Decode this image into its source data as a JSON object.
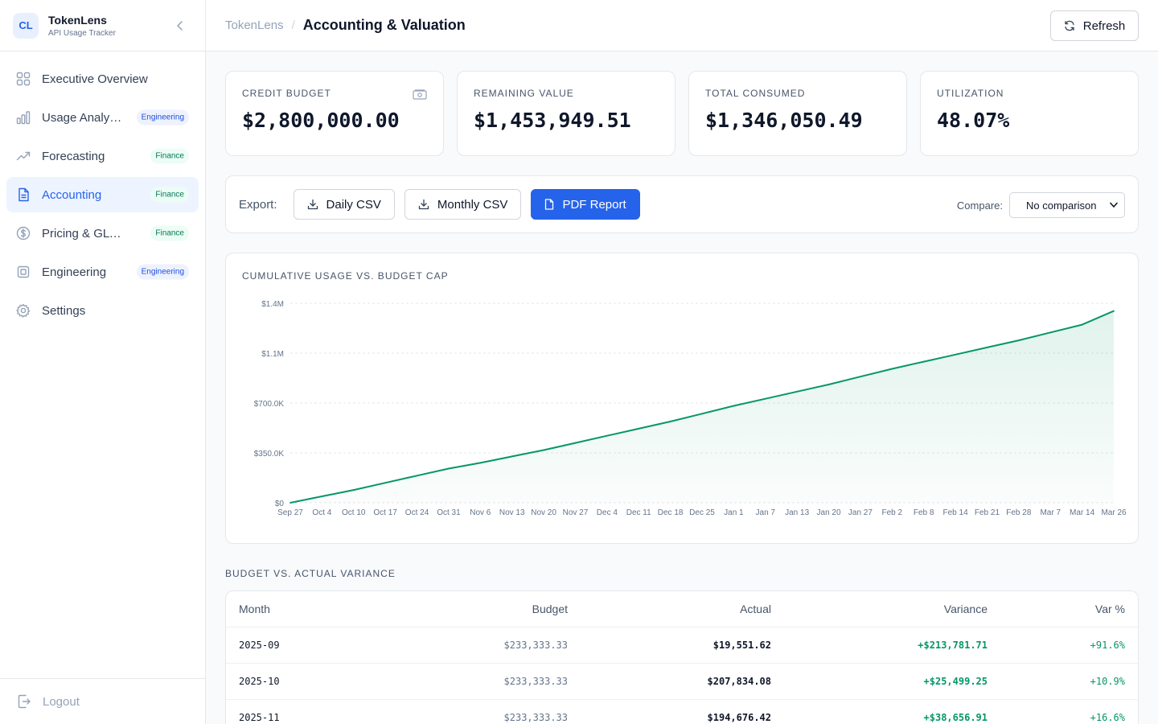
{
  "brand": {
    "logo": "CL",
    "name": "TokenLens",
    "subtitle": "API Usage Tracker"
  },
  "nav": [
    {
      "label": "Executive Overview",
      "icon": "grid-icon",
      "badge": ""
    },
    {
      "label": "Usage Analytics",
      "icon": "bar-chart-icon",
      "badge": "Engineering"
    },
    {
      "label": "Forecasting",
      "icon": "trending-up-icon",
      "badge": "Finance"
    },
    {
      "label": "Accounting",
      "icon": "document-icon",
      "badge": "Finance",
      "active": true
    },
    {
      "label": "Pricing & GL Tools",
      "icon": "dollar-circle-icon",
      "badge": "Finance"
    },
    {
      "label": "Engineering",
      "icon": "cpu-icon",
      "badge": "Engineering"
    },
    {
      "label": "Settings",
      "icon": "gear-icon",
      "badge": ""
    }
  ],
  "logout": "Logout",
  "header": {
    "root": "TokenLens",
    "separator": "/",
    "title": "Accounting & Valuation",
    "refresh": "Refresh"
  },
  "cards": [
    {
      "label": "Credit Budget",
      "value": "$2,800,000.00"
    },
    {
      "label": "Remaining Value",
      "value": "$1,453,949.51"
    },
    {
      "label": "Total Consumed",
      "value": "$1,346,050.49"
    },
    {
      "label": "Utilization",
      "value": "48.07%"
    }
  ],
  "toolbar": {
    "export_label": "Export:",
    "daily_csv": "Daily CSV",
    "monthly_csv": "Monthly CSV",
    "pdf_report": "PDF Report",
    "compare_label": "Compare:",
    "compare_value": "No comparison"
  },
  "chart_data": {
    "type": "area",
    "title": "Cumulative Usage vs. Budget Cap",
    "yticks": [
      "$0",
      "$350.0K",
      "$700.0K",
      "$1.1M",
      "$1.4M"
    ],
    "ylim": [
      0,
      1400000
    ],
    "xticks": [
      "Sep 27",
      "Oct 4",
      "Oct 10",
      "Oct 17",
      "Oct 24",
      "Oct 31",
      "Nov 6",
      "Nov 13",
      "Nov 20",
      "Nov 27",
      "Dec 4",
      "Dec 11",
      "Dec 18",
      "Dec 25",
      "Jan 1",
      "Jan 7",
      "Jan 13",
      "Jan 20",
      "Jan 27",
      "Feb 2",
      "Feb 8",
      "Feb 14",
      "Feb 21",
      "Feb 28",
      "Mar 7",
      "Mar 14",
      "Mar 26"
    ],
    "x": [
      "Sep 27",
      "Oct 4",
      "Oct 10",
      "Oct 17",
      "Oct 24",
      "Oct 31",
      "Nov 6",
      "Nov 13",
      "Nov 20",
      "Nov 27",
      "Dec 4",
      "Dec 11",
      "Dec 18",
      "Dec 25",
      "Jan 1",
      "Jan 7",
      "Jan 13",
      "Jan 20",
      "Jan 27",
      "Feb 2",
      "Feb 8",
      "Feb 14",
      "Feb 21",
      "Feb 28",
      "Mar 7",
      "Mar 14",
      "Mar 26"
    ],
    "series": [
      {
        "values": [
          0,
          45000,
          90000,
          140000,
          190000,
          240000,
          280000,
          325000,
          370000,
          420000,
          470000,
          520000,
          570000,
          625000,
          680000,
          730000,
          780000,
          830000,
          885000,
          940000,
          990000,
          1040000,
          1090000,
          1140000,
          1195000,
          1250000,
          1346050
        ]
      }
    ],
    "color": "#059669",
    "grid": true
  },
  "variance": {
    "title": "Budget vs. Actual Variance",
    "columns": [
      "Month",
      "Budget",
      "Actual",
      "Variance",
      "Var %"
    ],
    "rows": [
      {
        "month": "2025-09",
        "budget": "$233,333.33",
        "actual": "$19,551.62",
        "variance": "+$213,781.71",
        "pct": "+91.6%"
      },
      {
        "month": "2025-10",
        "budget": "$233,333.33",
        "actual": "$207,834.08",
        "variance": "+$25,499.25",
        "pct": "+10.9%"
      },
      {
        "month": "2025-11",
        "budget": "$233,333.33",
        "actual": "$194,676.42",
        "variance": "+$38,656.91",
        "pct": "+16.6%"
      }
    ]
  }
}
